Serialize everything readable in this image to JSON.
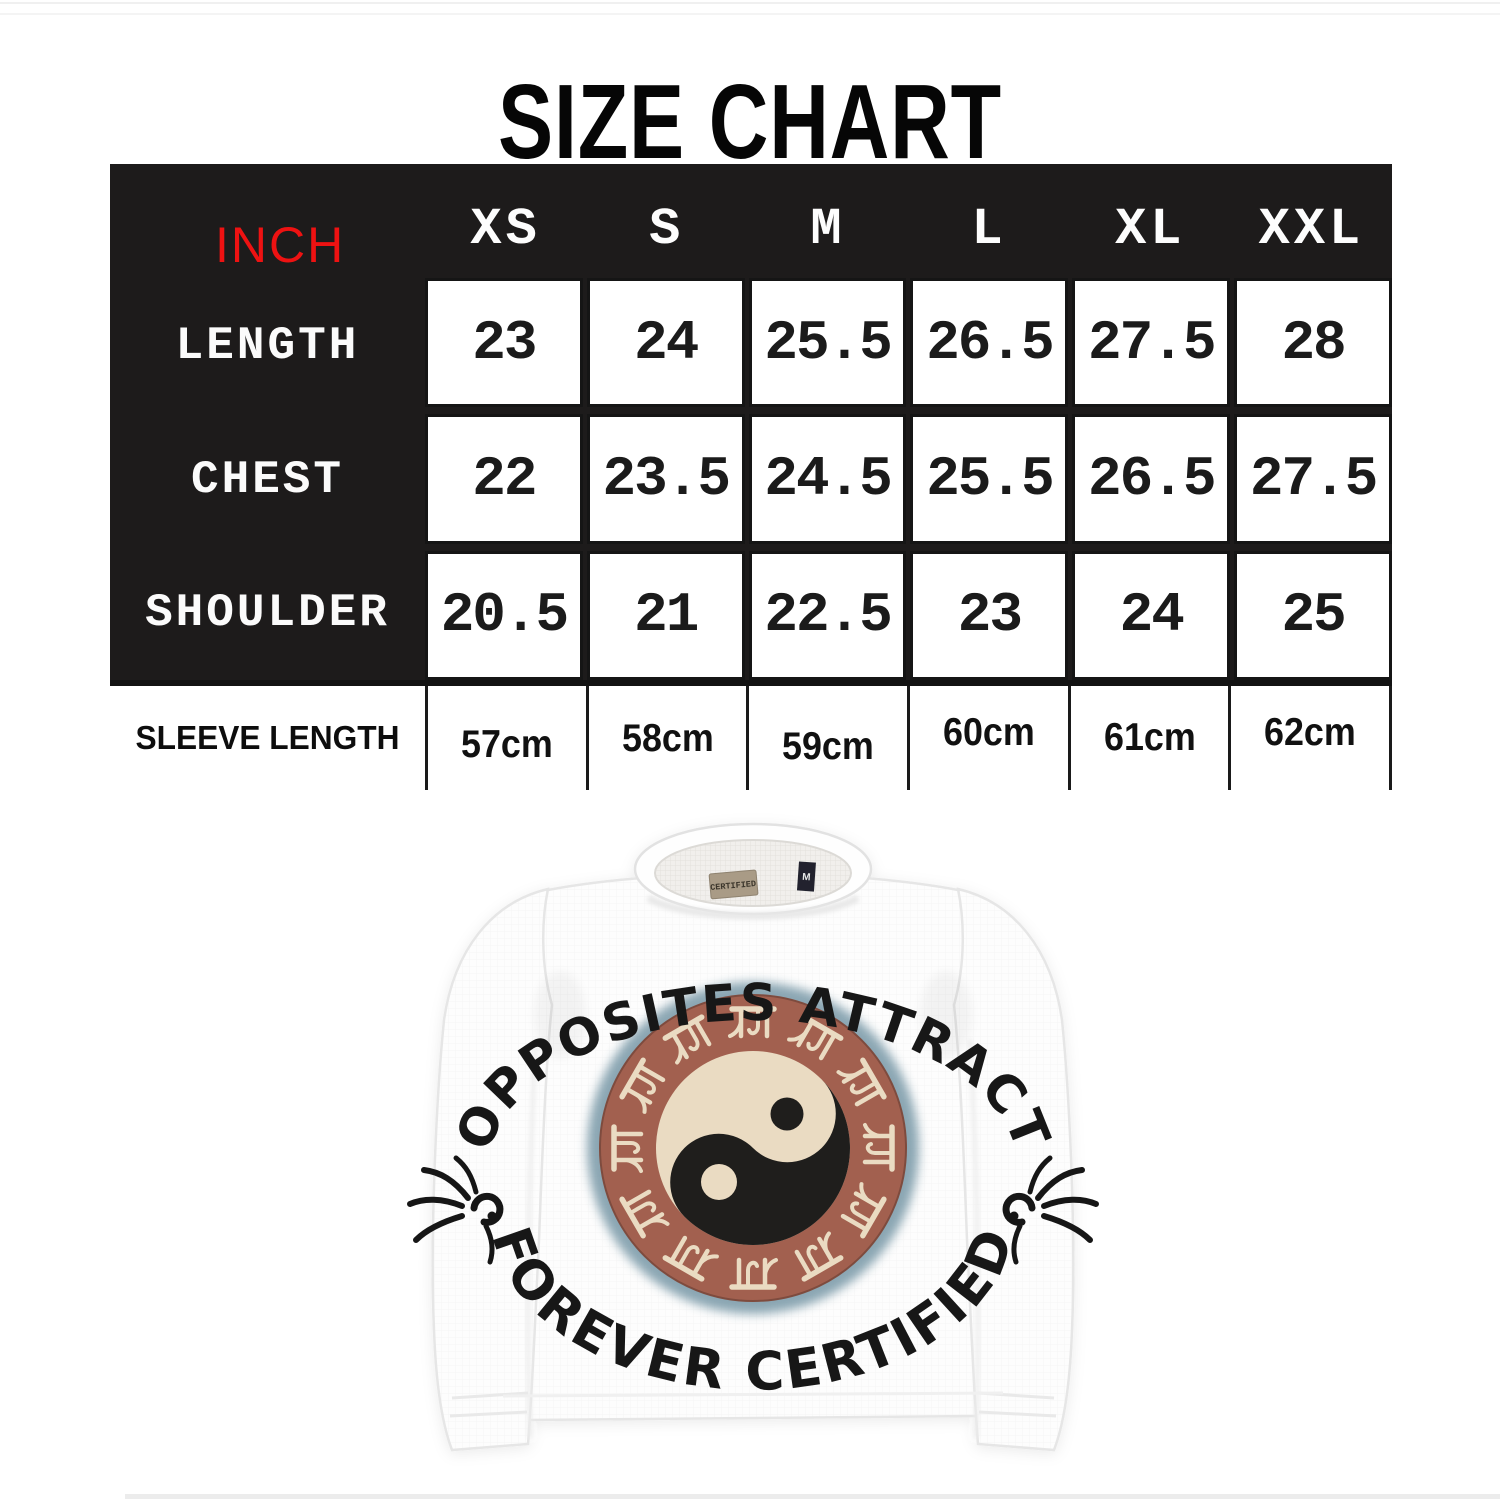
{
  "page": {
    "title": "SIZE CHART"
  },
  "size_table": {
    "unit_label": "INCH",
    "columns": [
      "XS",
      "S",
      "M",
      "L",
      "XL",
      "XXL"
    ],
    "rows": [
      {
        "label": "LENGTH",
        "values": [
          "23",
          "24",
          "25.5",
          "26.5",
          "27.5",
          "28"
        ]
      },
      {
        "label": "CHEST",
        "values": [
          "22",
          "23.5",
          "24.5",
          "25.5",
          "26.5",
          "27.5"
        ]
      },
      {
        "label": "SHOULDER",
        "values": [
          "20.5",
          "21",
          "22.5",
          "23",
          "24",
          "25"
        ]
      }
    ],
    "sleeve_row": {
      "label": "SLEEVE LENGTH",
      "values": [
        "57cm",
        "58cm",
        "59cm",
        "60cm",
        "61cm",
        "62cm"
      ]
    },
    "colors": {
      "header_bg": "#1d1b1b",
      "unit_label": "#ee1212",
      "cell_text": "#1b1b1b"
    }
  },
  "product_image": {
    "garment": "white long-sleeve crewneck tee",
    "graphic": {
      "arc_text_top": "OPPOSITES ATTRACT",
      "arc_text_bottom": "FOREVER CERTIFIED",
      "ring_script_text": "राम",
      "ring_script_repeats": 12,
      "colors": {
        "ring_terracotta": "#a2604f",
        "halo_blue": "#7f9dab",
        "cream": "#eadbc2",
        "ink": "#1b1a18"
      }
    },
    "neck_label": "CERTIFIED",
    "neck_size_tag": "M"
  }
}
